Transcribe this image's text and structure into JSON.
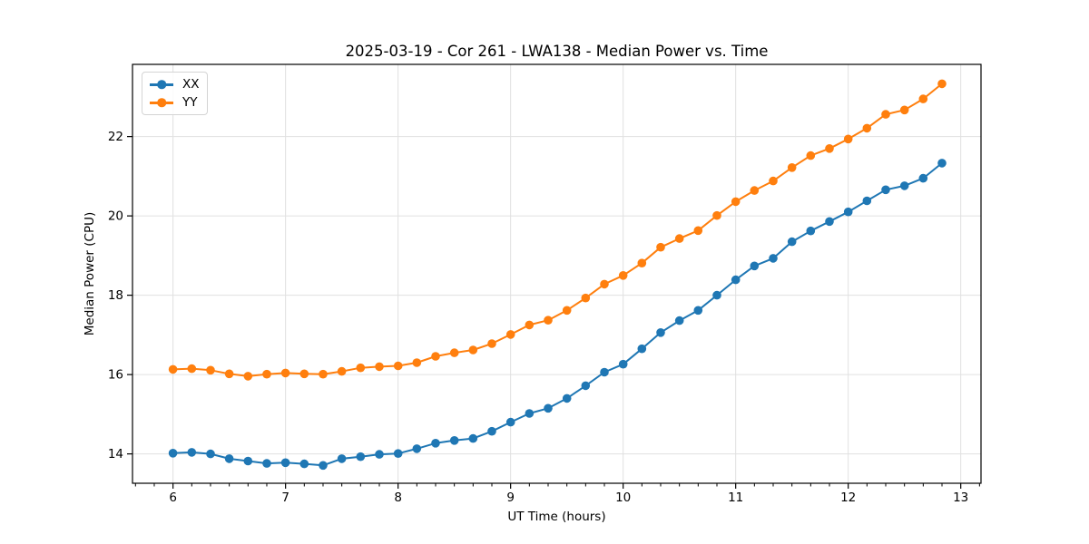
{
  "chart_data": {
    "type": "line",
    "title": "2025-03-19 - Cor 261 - LWA138 - Median Power vs. Time",
    "xlabel": "UT Time (hours)",
    "ylabel": "Median Power (CPU)",
    "legend_position": "upper-left",
    "grid": true,
    "xlim": [
      5.64,
      13.18
    ],
    "ylim": [
      13.26,
      23.82
    ],
    "xticks": [
      6,
      7,
      8,
      9,
      10,
      11,
      12,
      13
    ],
    "yticks": [
      14,
      16,
      18,
      20,
      22
    ],
    "x_minor_tick_step": 0.166667,
    "x": [
      6.0,
      6.1667,
      6.3333,
      6.5,
      6.6667,
      6.8333,
      7.0,
      7.1667,
      7.3333,
      7.5,
      7.6667,
      7.8333,
      8.0,
      8.1667,
      8.3333,
      8.5,
      8.6667,
      8.8333,
      9.0,
      9.1667,
      9.3333,
      9.5,
      9.6667,
      9.8333,
      10.0,
      10.1667,
      10.3333,
      10.5,
      10.6667,
      10.8333,
      11.0,
      11.1667,
      11.3333,
      11.5,
      11.6667,
      11.8333,
      12.0,
      12.1667,
      12.3333,
      12.5,
      12.6667,
      12.8333
    ],
    "series": [
      {
        "name": "XX",
        "color": "#1f77b4",
        "values": [
          14.02,
          14.04,
          14.0,
          13.88,
          13.82,
          13.76,
          13.78,
          13.75,
          13.71,
          13.88,
          13.93,
          13.99,
          14.01,
          14.13,
          14.27,
          14.34,
          14.39,
          14.57,
          14.8,
          15.02,
          15.15,
          15.4,
          15.72,
          16.06,
          16.26,
          16.65,
          17.06,
          17.36,
          17.62,
          18.0,
          18.39,
          18.74,
          18.93,
          19.35,
          19.62,
          19.86,
          20.1,
          20.38,
          20.66,
          20.76,
          20.95,
          21.33
        ]
      },
      {
        "name": "YY",
        "color": "#ff7f0e",
        "values": [
          16.13,
          16.15,
          16.11,
          16.02,
          15.96,
          16.01,
          16.04,
          16.02,
          16.01,
          16.08,
          16.17,
          16.2,
          16.22,
          16.3,
          16.46,
          16.55,
          16.62,
          16.78,
          17.01,
          17.25,
          17.37,
          17.62,
          17.93,
          18.28,
          18.5,
          18.81,
          19.21,
          19.43,
          19.63,
          20.01,
          20.36,
          20.64,
          20.88,
          21.22,
          21.52,
          21.7,
          21.94,
          22.21,
          22.56,
          22.67,
          22.95,
          23.33
        ]
      }
    ]
  }
}
